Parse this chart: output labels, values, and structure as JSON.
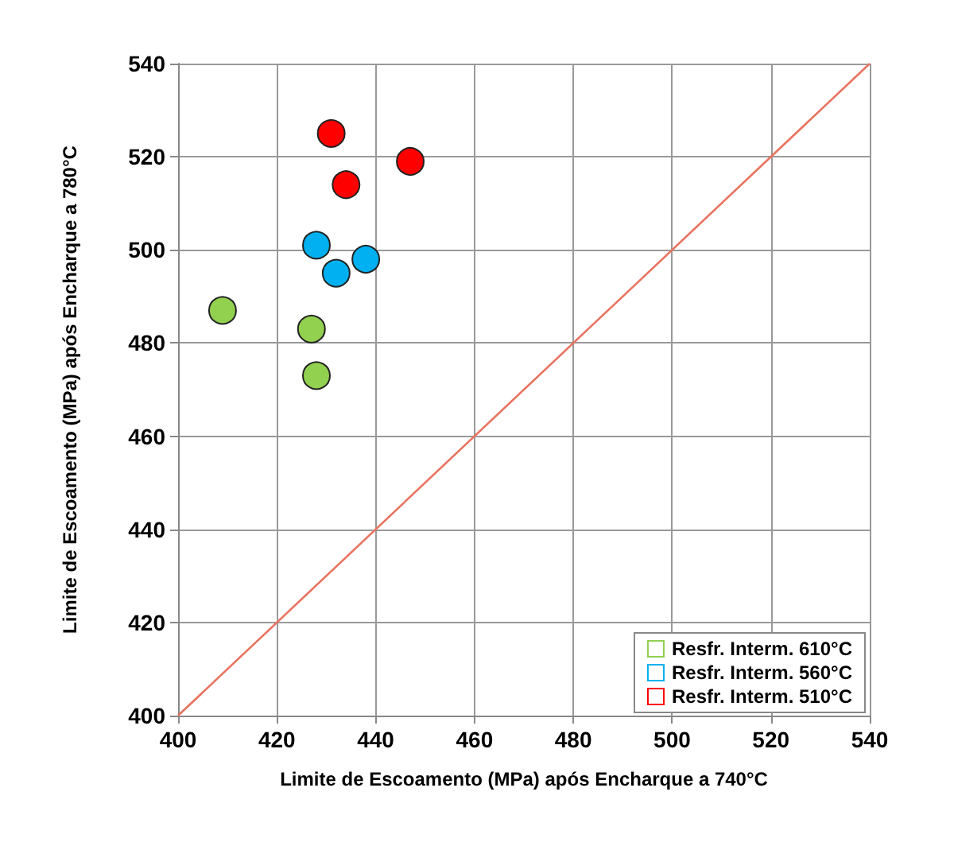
{
  "chart_data": {
    "type": "scatter",
    "xlabel": "Limite de Escoamento (MPa) após Encharque a 740°C",
    "ylabel": "Limite de Escoamento (MPa) após Encharque a 780°C",
    "xlim": [
      400,
      540
    ],
    "xticks": [
      400,
      420,
      440,
      460,
      480,
      500,
      520,
      540
    ],
    "ylim": [
      400,
      540
    ],
    "yticks": [
      400,
      420,
      440,
      460,
      480,
      500,
      520,
      540
    ],
    "grid": true,
    "legend": "bottom right",
    "marker": "circle",
    "series": [
      {
        "name": "Resfr. Interm. 610°C",
        "color": "#92d050",
        "x": [
          409,
          427,
          428
        ],
        "values": [
          487,
          483,
          473
        ]
      },
      {
        "name": "Resfr. Interm. 560°C",
        "color": "#00b0f0",
        "x": [
          428,
          438,
          432
        ],
        "values": [
          501,
          498,
          495
        ]
      },
      {
        "name": "Resfr. Interm. 510°C",
        "color": "#ff0000",
        "x": [
          431,
          447,
          434
        ],
        "values": [
          525,
          519,
          514
        ]
      },
      {
        "type": "line",
        "color": "#e8735f",
        "x": [
          400,
          540
        ],
        "values": [
          400,
          540
        ],
        "marker": "none",
        "line_style": "solid"
      }
    ]
  }
}
